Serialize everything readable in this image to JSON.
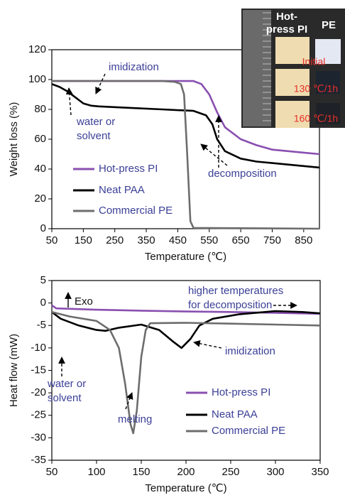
{
  "chart_data": [
    {
      "type": "line",
      "ylabel": "Weight loss (%)",
      "xlabel": "Temperature (℃)",
      "xlim": [
        50,
        900
      ],
      "xticks": [
        50,
        150,
        250,
        350,
        450,
        550,
        650,
        750,
        850
      ],
      "ylim": [
        0,
        120
      ],
      "yticks": [
        0,
        20,
        40,
        60,
        80,
        100,
        120
      ],
      "series": [
        {
          "name": "Hot-press PI",
          "color": "#8a4fb0",
          "x": [
            50,
            200,
            400,
            500,
            525,
            550,
            575,
            600,
            650,
            700,
            750,
            800,
            850,
            900
          ],
          "values": [
            99,
            99,
            99,
            99,
            97,
            90,
            78,
            68,
            60,
            56,
            53,
            52,
            51,
            50
          ]
        },
        {
          "name": "Neat PAA",
          "color": "#000000",
          "x": [
            50,
            75,
            100,
            125,
            150,
            175,
            200,
            300,
            400,
            500,
            540,
            560,
            575,
            600,
            650,
            700,
            750,
            800,
            850,
            900
          ],
          "values": [
            97,
            95,
            92,
            88,
            84,
            82.5,
            82,
            81,
            80,
            79,
            76,
            70,
            60,
            52,
            47,
            45,
            44,
            43,
            42,
            41
          ]
        },
        {
          "name": "Commercial PE",
          "color": "#6d6d6d",
          "x": [
            50,
            400,
            440,
            460,
            470,
            480,
            490,
            500,
            900
          ],
          "values": [
            99,
            99,
            98.5,
            97,
            90,
            50,
            5,
            0.5,
            0
          ]
        }
      ],
      "annotations": [
        {
          "lines": [
            "imidization"
          ]
        },
        {
          "lines": [
            "water or",
            "solvent"
          ]
        },
        {
          "lines": [
            "decomposition"
          ]
        }
      ],
      "inset": {
        "columns": [
          {
            "lines": [
              "Hot-",
              "press PI"
            ]
          },
          {
            "lines": [
              "PE"
            ]
          }
        ],
        "rows": [
          "Initial",
          "130 ℃/1h",
          "160 ℃/1h"
        ]
      }
    },
    {
      "type": "line",
      "ylabel": "Heat flow (mW)",
      "xlabel": "Temperature (℃)",
      "xlim": [
        50,
        350
      ],
      "xticks": [
        50,
        100,
        150,
        200,
        250,
        300,
        350
      ],
      "ylim": [
        -35,
        5
      ],
      "yticks": [
        -35,
        -30,
        -25,
        -20,
        -15,
        -10,
        -5,
        0,
        5
      ],
      "series": [
        {
          "name": "Hot-press PI",
          "color": "#8a4fb0",
          "x": [
            50,
            55,
            100,
            150,
            200,
            250,
            300,
            350
          ],
          "values": [
            -0.5,
            -1.2,
            -1.5,
            -1.7,
            -1.9,
            -2.0,
            -2.2,
            -2.4
          ]
        },
        {
          "name": "Neat PAA",
          "color": "#000000",
          "x": [
            50,
            60,
            80,
            100,
            110,
            125,
            150,
            170,
            185,
            195,
            205,
            215,
            230,
            260,
            300,
            330,
            350
          ],
          "values": [
            -2,
            -3.5,
            -5,
            -6,
            -6.2,
            -5.5,
            -4.8,
            -6,
            -8.5,
            -10,
            -8,
            -5,
            -3.5,
            -2.5,
            -1.8,
            -2,
            -2.3
          ]
        },
        {
          "name": "Commercial PE",
          "color": "#6d6d6d",
          "x": [
            50,
            70,
            100,
            115,
            125,
            132,
            138,
            141,
            145,
            150,
            155,
            160,
            200,
            250,
            300,
            350
          ],
          "values": [
            -2,
            -3,
            -4,
            -6,
            -10,
            -18,
            -27,
            -29,
            -24,
            -12,
            -6,
            -4.5,
            -4.4,
            -4.6,
            -4.8,
            -5
          ]
        }
      ],
      "annotations": [
        {
          "lines": [
            "Exo"
          ]
        },
        {
          "lines": [
            "higher temperatures",
            "for decomposition"
          ]
        },
        {
          "lines": [
            "imidization"
          ]
        },
        {
          "lines": [
            "water or",
            "solvent"
          ]
        },
        {
          "lines": [
            "melting"
          ]
        }
      ]
    }
  ]
}
